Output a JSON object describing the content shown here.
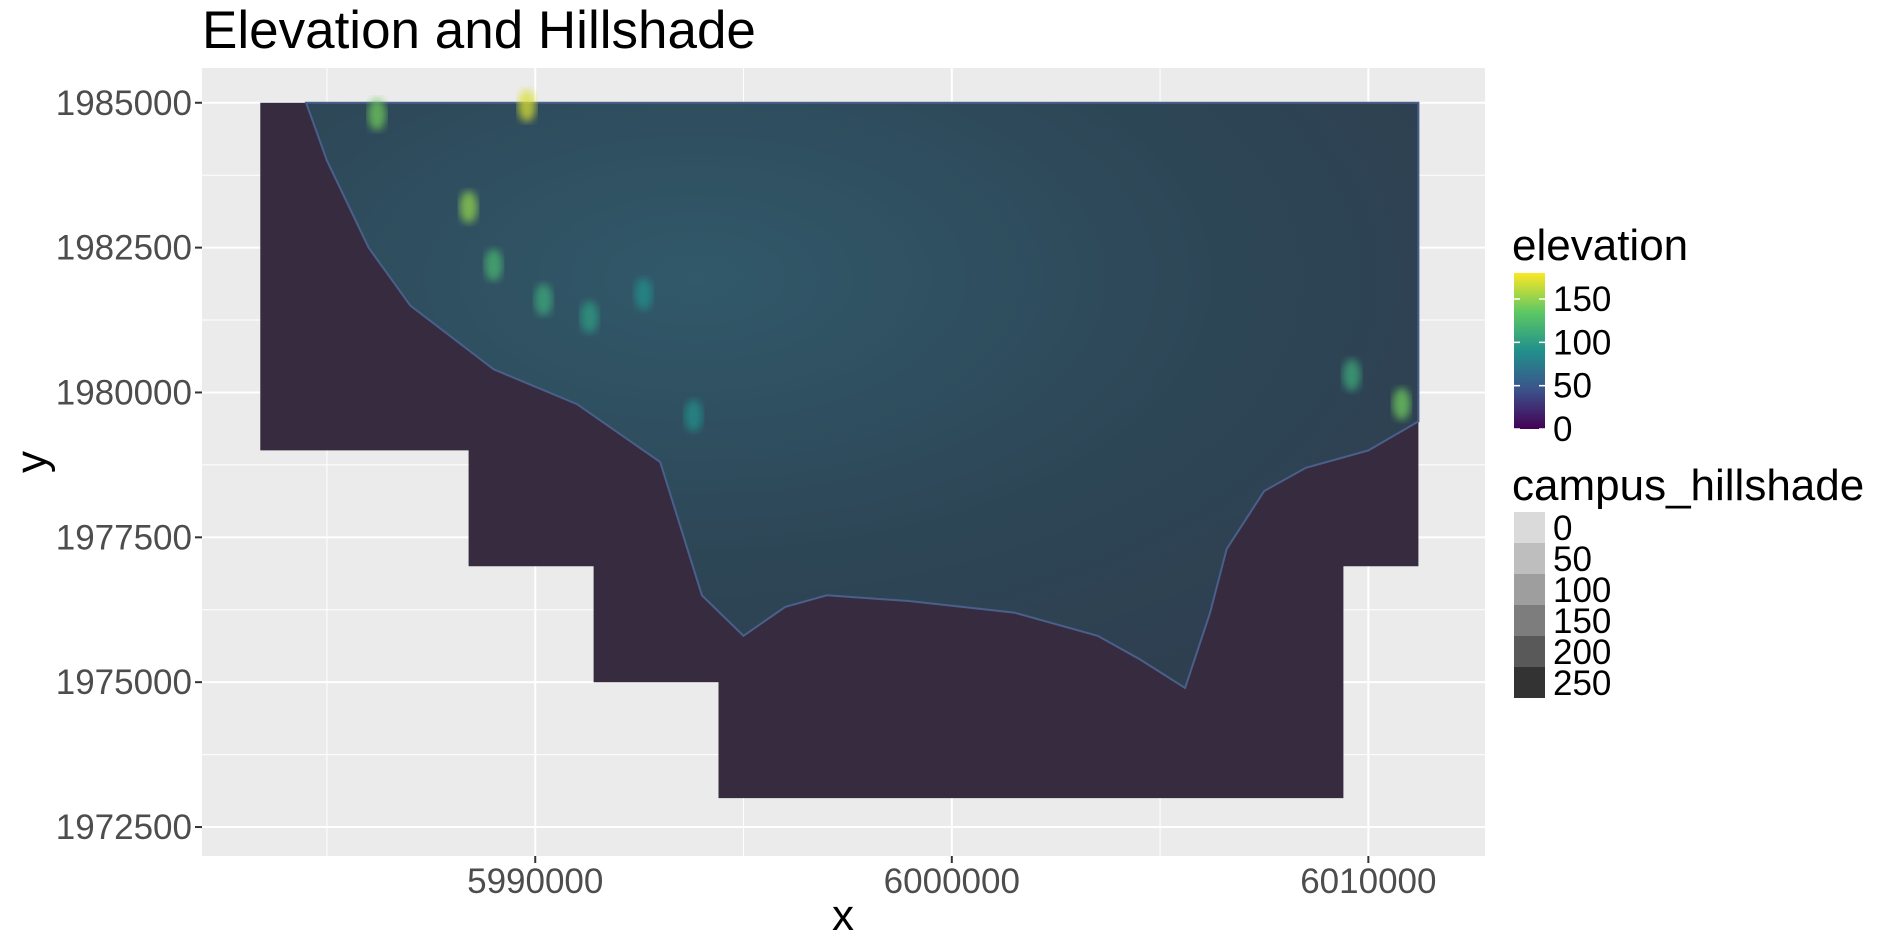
{
  "chart_data": {
    "type": "heatmap",
    "title": "Elevation and Hillshade",
    "xlabel": "x",
    "ylabel": "y",
    "xlim": [
      5982000,
      6012800
    ],
    "ylim": [
      1972000,
      1985600
    ],
    "x_ticks": [
      5990000,
      6000000,
      6010000
    ],
    "x_tick_labels": [
      "5990000",
      "6000000",
      "6010000"
    ],
    "y_ticks": [
      1972500,
      1975000,
      1977500,
      1980000,
      1982500,
      1985000
    ],
    "y_tick_labels": [
      "1972500",
      "1975000",
      "1977500",
      "1980000",
      "1982500",
      "1985000"
    ],
    "grid": true,
    "raster_extent": {
      "footprint_outline": [
        [
          5983400,
          1985000
        ],
        [
          6011200,
          1985000
        ],
        [
          6011200,
          1977000
        ],
        [
          6009400,
          1977000
        ],
        [
          6009400,
          1973000
        ],
        [
          5994400,
          1973000
        ],
        [
          5994400,
          1975000
        ],
        [
          5991400,
          1975000
        ],
        [
          5991400,
          1977000
        ],
        [
          5988400,
          1977000
        ],
        [
          5988400,
          1979000
        ],
        [
          5983400,
          1979000
        ]
      ],
      "land_outline": [
        [
          5984500,
          1985000
        ],
        [
          6011200,
          1985000
        ],
        [
          6011200,
          1979500
        ],
        [
          6010000,
          1979000
        ],
        [
          6008500,
          1978700
        ],
        [
          6007500,
          1978300
        ],
        [
          6006600,
          1977300
        ],
        [
          6006200,
          1976200
        ],
        [
          6005600,
          1974900
        ],
        [
          6004500,
          1975400
        ],
        [
          6003500,
          1975800
        ],
        [
          6001500,
          1976200
        ],
        [
          5999000,
          1976400
        ],
        [
          5997000,
          1976500
        ],
        [
          5996000,
          1976300
        ],
        [
          5995000,
          1975800
        ],
        [
          5994000,
          1976500
        ],
        [
          5993000,
          1978800
        ],
        [
          5991000,
          1979800
        ],
        [
          5989000,
          1980400
        ],
        [
          5987000,
          1981500
        ],
        [
          5986000,
          1982500
        ],
        [
          5985000,
          1984000
        ],
        [
          5984500,
          1985000
        ]
      ],
      "ocean_value": 0,
      "highlights": [
        {
          "x": 5988400,
          "y": 1983200,
          "value": 150
        },
        {
          "x": 5989000,
          "y": 1982200,
          "value": 120
        },
        {
          "x": 5990200,
          "y": 1981600,
          "value": 110
        },
        {
          "x": 5991300,
          "y": 1981300,
          "value": 100
        },
        {
          "x": 5992600,
          "y": 1981700,
          "value": 90
        },
        {
          "x": 5989800,
          "y": 1984950,
          "value": 170
        },
        {
          "x": 5986200,
          "y": 1984800,
          "value": 140
        },
        {
          "x": 6010800,
          "y": 1979800,
          "value": 140
        },
        {
          "x": 6009600,
          "y": 1980300,
          "value": 110
        },
        {
          "x": 5993800,
          "y": 1979600,
          "value": 90
        }
      ]
    },
    "legends": [
      {
        "title": "elevation",
        "type": "colorbar",
        "range": [
          0,
          180
        ],
        "breaks": [
          0,
          50,
          100,
          150
        ],
        "labels": [
          "0",
          "50",
          "100",
          "150"
        ],
        "colors": [
          "#440154",
          "#3b528b",
          "#21908c",
          "#5dc863",
          "#fde725"
        ]
      },
      {
        "title": "campus_hillshade",
        "type": "alpha",
        "breaks": [
          0,
          50,
          100,
          150,
          200,
          250
        ],
        "labels": [
          "0",
          "50",
          "100",
          "150",
          "200",
          "250"
        ],
        "colors": [
          "#dadada",
          "#bebebe",
          "#9e9e9e",
          "#7d7d7d",
          "#595959",
          "#333333"
        ]
      }
    ]
  },
  "colors": {
    "panel_background": "#ebebeb",
    "grid": "#ffffff",
    "ocean": "#372c3f",
    "land": "#2f4a55"
  }
}
